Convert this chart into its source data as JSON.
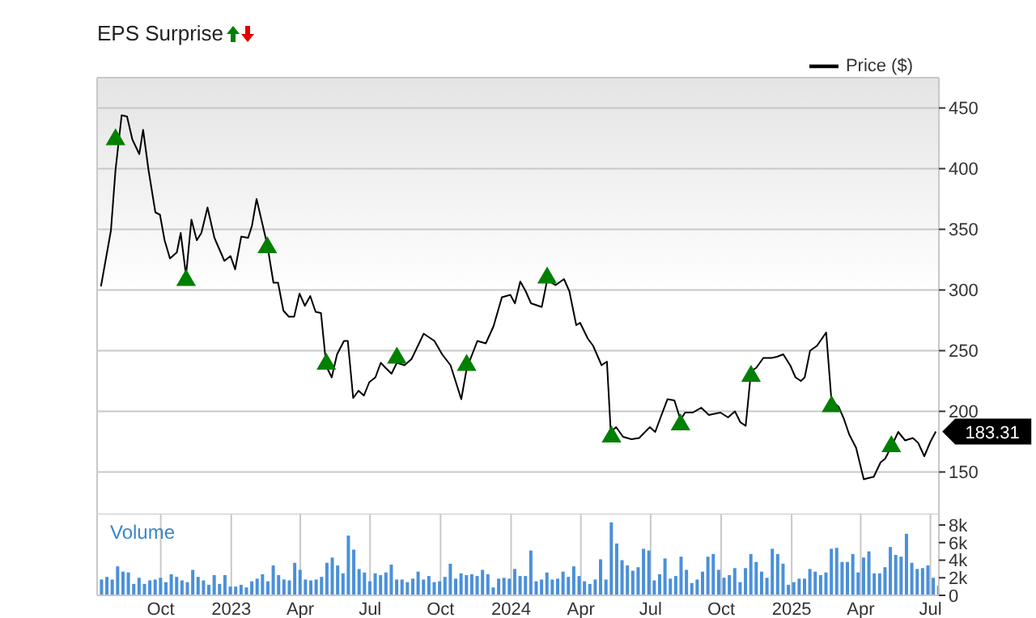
{
  "chart_data": [
    {
      "type": "line",
      "title": "EPS Surprise",
      "marker": "none",
      "grid": true,
      "legend": "top right",
      "tick_labels": "y",
      "xlim": [
        "2022-07-10",
        "2025-07-12"
      ],
      "xticks": [
        {
          "value": "2022-10-01",
          "label": null
        },
        {
          "value": "2023-01-01",
          "label": null
        },
        {
          "value": "2023-04-01",
          "label": null
        },
        {
          "value": "2023-07-01",
          "label": null
        },
        {
          "value": "2023-10-01",
          "label": null
        },
        {
          "value": "2024-01-01",
          "label": null
        },
        {
          "value": "2024-04-01",
          "label": null
        },
        {
          "value": "2024-07-01",
          "label": null
        },
        {
          "value": "2024-10-01",
          "label": null
        },
        {
          "value": "2025-01-01",
          "label": null
        },
        {
          "value": "2025-04-01",
          "label": null
        },
        {
          "value": "2025-07-01",
          "label": null
        }
      ],
      "ylim": [
        115,
        475
      ],
      "yticks": [
        150,
        200,
        250,
        300,
        350,
        400,
        450
      ],
      "series": [
        {
          "name": "Price ($)",
          "color": "#000000",
          "x": [
            "2022-07-15",
            "2022-07-28",
            "2022-08-03",
            "2022-08-11",
            "2022-08-18",
            "2022-08-25",
            "2022-09-03",
            "2022-09-08",
            "2022-09-15",
            "2022-09-24",
            "2022-09-30",
            "2022-10-06",
            "2022-10-13",
            "2022-10-22",
            "2022-10-27",
            "2022-11-03",
            "2022-11-10",
            "2022-11-17",
            "2022-11-23",
            "2022-12-01",
            "2022-12-10",
            "2022-12-23",
            "2022-12-31",
            "2023-01-06",
            "2023-01-14",
            "2023-01-23",
            "2023-01-28",
            "2023-02-03",
            "2023-02-10",
            "2023-02-17",
            "2023-02-25",
            "2023-03-03",
            "2023-03-10",
            "2023-03-17",
            "2023-03-24",
            "2023-03-31",
            "2023-04-07",
            "2023-04-14",
            "2023-04-21",
            "2023-04-28",
            "2023-05-05",
            "2023-05-12",
            "2023-05-19",
            "2023-05-28",
            "2023-06-02",
            "2023-06-09",
            "2023-06-16",
            "2023-06-23",
            "2023-06-30",
            "2023-07-08",
            "2023-07-15",
            "2023-07-21",
            "2023-07-29",
            "2023-08-05",
            "2023-08-15",
            "2023-08-24",
            "2023-09-09",
            "2023-09-23",
            "2023-10-03",
            "2023-10-14",
            "2023-10-28",
            "2023-11-04",
            "2023-11-18",
            "2023-11-29",
            "2023-12-09",
            "2023-12-20",
            "2023-12-31",
            "2024-01-06",
            "2024-01-13",
            "2024-01-20",
            "2024-01-27",
            "2024-02-10",
            "2024-02-17",
            "2024-02-28",
            "2024-03-10",
            "2024-03-17",
            "2024-03-26",
            "2024-03-31",
            "2024-04-10",
            "2024-04-17",
            "2024-04-28",
            "2024-05-05",
            "2024-05-10",
            "2024-05-17",
            "2024-05-26",
            "2024-06-06",
            "2024-06-16",
            "2024-06-30",
            "2024-07-07",
            "2024-07-14",
            "2024-07-23",
            "2024-08-01",
            "2024-08-09",
            "2024-08-15",
            "2024-08-25",
            "2024-09-05",
            "2024-09-15",
            "2024-09-30",
            "2024-10-10",
            "2024-10-19",
            "2024-10-26",
            "2024-11-02",
            "2024-11-09",
            "2024-11-16",
            "2024-11-25",
            "2024-12-06",
            "2024-12-13",
            "2024-12-21",
            "2024-12-30",
            "2025-01-06",
            "2025-01-13",
            "2025-01-18",
            "2025-01-25",
            "2025-02-03",
            "2025-02-15",
            "2025-02-22",
            "2025-03-03",
            "2025-03-10",
            "2025-03-17",
            "2025-03-26",
            "2025-04-05",
            "2025-04-11",
            "2025-04-18",
            "2025-04-27",
            "2025-05-03",
            "2025-05-11",
            "2025-05-20",
            "2025-05-29",
            "2025-06-08",
            "2025-06-15",
            "2025-06-23",
            "2025-07-01",
            "2025-07-08"
          ],
          "values": [
            303,
            349,
            399,
            444,
            443,
            424,
            412,
            432,
            399,
            364,
            362,
            341,
            326,
            331,
            347,
            312,
            358,
            341,
            347,
            368,
            343,
            324,
            328,
            317,
            344,
            343,
            353,
            375,
            356,
            337,
            306,
            306,
            283,
            278,
            278,
            297,
            287,
            295,
            282,
            281,
            237,
            228,
            247,
            258,
            258,
            211,
            217,
            213,
            224,
            228,
            240,
            236,
            231,
            240,
            238,
            243,
            264,
            258,
            247,
            238,
            210,
            235,
            258,
            256,
            270,
            294,
            296,
            289,
            307,
            299,
            289,
            286,
            308,
            304,
            309,
            299,
            271,
            273,
            260,
            254,
            238,
            241,
            183,
            187,
            179,
            177,
            178,
            187,
            183,
            195,
            210,
            209,
            193,
            199,
            199,
            203,
            197,
            199,
            195,
            200,
            191,
            188,
            233,
            236,
            244,
            244,
            245,
            247,
            238,
            228,
            225,
            228,
            250,
            254,
            265,
            208,
            204,
            194,
            181,
            170,
            144,
            145,
            146,
            158,
            161,
            171,
            183,
            176,
            178,
            174,
            163,
            175,
            183.31
          ]
        },
        {
          "type": "scatter",
          "marker": "triangle",
          "color": "#008000",
          "x": [
            "2022-08-03",
            "2022-11-03",
            "2023-02-17",
            "2023-05-05",
            "2023-08-05",
            "2023-11-04",
            "2024-02-17",
            "2024-05-11",
            "2024-08-09",
            "2024-11-09",
            "2025-02-22",
            "2025-05-11"
          ],
          "values": [
            424,
            308,
            335,
            239,
            244,
            238,
            310,
            179,
            189,
            229,
            204,
            171
          ]
        }
      ],
      "annotations": [
        {
          "text": "183.31",
          "x": "2025-07-08",
          "y": 183.31
        }
      ]
    },
    {
      "type": "bar",
      "title": "Volume",
      "grid": "x",
      "xlim": [
        "2022-07-10",
        "2025-07-12"
      ],
      "xticks": [
        {
          "value": "2022-10-01",
          "label": "Oct"
        },
        {
          "value": "2023-01-01",
          "label": "2023"
        },
        {
          "value": "2023-04-01",
          "label": "Apr"
        },
        {
          "value": "2023-07-01",
          "label": "Jul"
        },
        {
          "value": "2023-10-01",
          "label": "Oct"
        },
        {
          "value": "2024-01-01",
          "label": "2024"
        },
        {
          "value": "2024-04-01",
          "label": "Apr"
        },
        {
          "value": "2024-07-01",
          "label": "Jul"
        },
        {
          "value": "2024-10-01",
          "label": "Oct"
        },
        {
          "value": "2025-01-01",
          "label": "2025"
        },
        {
          "value": "2025-04-01",
          "label": "Apr"
        },
        {
          "value": "2025-07-01",
          "label": "Jul"
        }
      ],
      "ylim": [
        0,
        9200
      ],
      "yticks": [
        0,
        {
          "value": 2000,
          "label": "2k"
        },
        {
          "value": 4000,
          "label": "4k"
        },
        {
          "value": 6000,
          "label": "6k"
        },
        {
          "value": 8000,
          "label": "8k"
        }
      ],
      "color": "#4a90d9",
      "x": [
        "2022-07-15",
        "2022-07-22",
        "2022-07-29",
        "2022-08-05",
        "2022-08-12",
        "2022-08-19",
        "2022-08-26",
        "2022-09-02",
        "2022-09-09",
        "2022-09-16",
        "2022-09-23",
        "2022-09-30",
        "2022-10-07",
        "2022-10-14",
        "2022-10-21",
        "2022-10-28",
        "2022-11-04",
        "2022-11-11",
        "2022-11-18",
        "2022-11-25",
        "2022-12-02",
        "2022-12-09",
        "2022-12-16",
        "2022-12-23",
        "2022-12-30",
        "2023-01-06",
        "2023-01-13",
        "2023-01-20",
        "2023-01-27",
        "2023-02-03",
        "2023-02-10",
        "2023-02-17",
        "2023-02-24",
        "2023-03-03",
        "2023-03-10",
        "2023-03-17",
        "2023-03-24",
        "2023-03-31",
        "2023-04-07",
        "2023-04-14",
        "2023-04-21",
        "2023-04-28",
        "2023-05-05",
        "2023-05-12",
        "2023-05-19",
        "2023-05-26",
        "2023-06-02",
        "2023-06-09",
        "2023-06-16",
        "2023-06-23",
        "2023-06-30",
        "2023-07-07",
        "2023-07-14",
        "2023-07-21",
        "2023-07-28",
        "2023-08-04",
        "2023-08-11",
        "2023-08-18",
        "2023-08-25",
        "2023-09-01",
        "2023-09-08",
        "2023-09-15",
        "2023-09-22",
        "2023-09-29",
        "2023-10-06",
        "2023-10-13",
        "2023-10-20",
        "2023-10-27",
        "2023-11-03",
        "2023-11-10",
        "2023-11-17",
        "2023-11-24",
        "2023-12-01",
        "2023-12-08",
        "2023-12-15",
        "2023-12-22",
        "2023-12-29",
        "2024-01-05",
        "2024-01-12",
        "2024-01-19",
        "2024-01-26",
        "2024-02-02",
        "2024-02-09",
        "2024-02-16",
        "2024-02-23",
        "2024-03-01",
        "2024-03-08",
        "2024-03-15",
        "2024-03-22",
        "2024-03-29",
        "2024-04-05",
        "2024-04-12",
        "2024-04-19",
        "2024-04-26",
        "2024-05-03",
        "2024-05-10",
        "2024-05-17",
        "2024-05-24",
        "2024-05-31",
        "2024-06-07",
        "2024-06-14",
        "2024-06-21",
        "2024-06-28",
        "2024-07-05",
        "2024-07-12",
        "2024-07-19",
        "2024-07-26",
        "2024-08-02",
        "2024-08-09",
        "2024-08-16",
        "2024-08-23",
        "2024-08-30",
        "2024-09-06",
        "2024-09-13",
        "2024-09-20",
        "2024-09-27",
        "2024-10-04",
        "2024-10-11",
        "2024-10-18",
        "2024-10-25",
        "2024-11-01",
        "2024-11-08",
        "2024-11-15",
        "2024-11-22",
        "2024-11-29",
        "2024-12-06",
        "2024-12-13",
        "2024-12-20",
        "2024-12-27",
        "2025-01-03",
        "2025-01-10",
        "2025-01-17",
        "2025-01-24",
        "2025-01-31",
        "2025-02-07",
        "2025-02-14",
        "2025-02-21",
        "2025-02-28",
        "2025-03-07",
        "2025-03-14",
        "2025-03-21",
        "2025-03-28",
        "2025-04-04",
        "2025-04-11",
        "2025-04-18",
        "2025-04-25",
        "2025-05-02",
        "2025-05-09",
        "2025-05-16",
        "2025-05-23",
        "2025-05-30",
        "2025-06-06",
        "2025-06-13",
        "2025-06-20",
        "2025-06-27",
        "2025-07-04",
        "2025-07-11"
      ],
      "values": [
        1800,
        2100,
        1800,
        3300,
        2700,
        2600,
        1300,
        2000,
        1300,
        1700,
        1800,
        2000,
        1500,
        2400,
        2100,
        1700,
        1500,
        2900,
        2100,
        1700,
        1200,
        2300,
        1300,
        2300,
        1000,
        1000,
        1200,
        900,
        1600,
        1900,
        2400,
        1600,
        3400,
        2300,
        1800,
        1700,
        3700,
        2900,
        1800,
        1700,
        1800,
        2100,
        3700,
        4300,
        3400,
        2500,
        6800,
        5200,
        3000,
        2600,
        1600,
        2500,
        2300,
        2600,
        3500,
        1800,
        1800,
        1500,
        1900,
        2700,
        1800,
        2200,
        1500,
        1600,
        2100,
        3600,
        1900,
        2500,
        2300,
        2400,
        2200,
        2900,
        2400,
        900,
        1900,
        2000,
        1900,
        3000,
        2200,
        2200,
        5100,
        1600,
        1800,
        2600,
        1800,
        1900,
        2700,
        2100,
        3300,
        2200,
        1600,
        1300,
        1800,
        4100,
        1800,
        8300,
        5900,
        4000,
        3400,
        2800,
        3200,
        5300,
        5100,
        1700,
        2400,
        4200,
        1900,
        2200,
        4400,
        2900,
        1400,
        1800,
        2700,
        4400,
        4700,
        2900,
        2000,
        2300,
        3100,
        1500,
        3100,
        4700,
        3800,
        2700,
        2000,
        5300,
        4700,
        3600,
        1200,
        1500,
        1900,
        1900,
        3000,
        2700,
        2300,
        2600,
        5300,
        5400,
        3800,
        3800,
        4700,
        2600,
        4300,
        5000,
        2500,
        2500,
        3200,
        5500,
        4600,
        4400,
        7000,
        3700,
        3000,
        3100,
        3400,
        2000,
        1100
      ]
    }
  ]
}
